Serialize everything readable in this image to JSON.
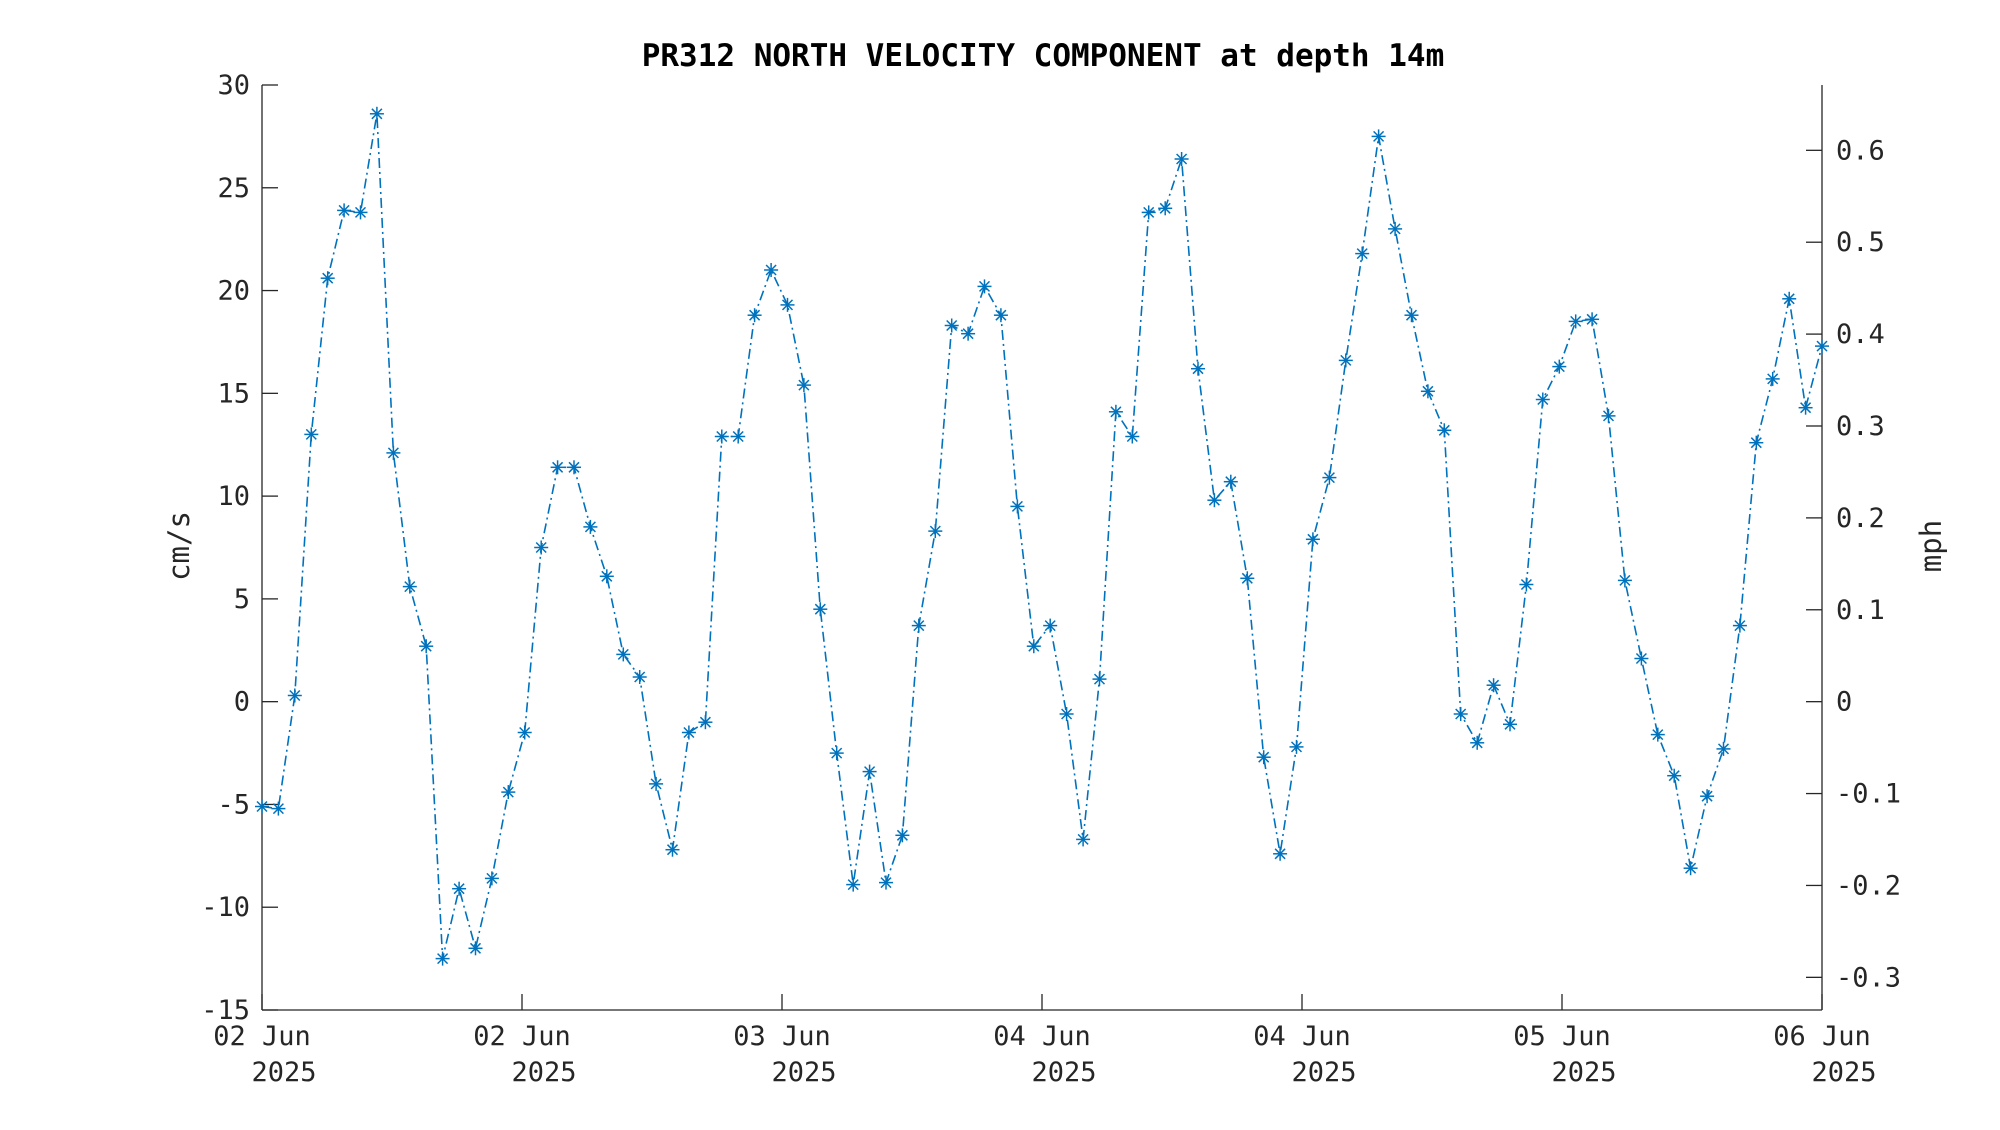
{
  "chart_data": {
    "type": "line",
    "title": "PR312 NORTH VELOCITY COMPONENT at depth 14m",
    "ylabel": "cm/s",
    "ylabel_right": "mph",
    "ylim": [
      -15,
      30
    ],
    "y_ticks": [
      "-15",
      "-10",
      "-5",
      "0",
      "5",
      "10",
      "15",
      "20",
      "25",
      "30"
    ],
    "y_tick_values": [
      -15,
      -10,
      -5,
      0,
      5,
      10,
      15,
      20,
      25,
      30
    ],
    "y_right_ticks": [
      "-0.3",
      "-0.2",
      "-0.1",
      "0",
      "0.1",
      "0.2",
      "0.3",
      "0.4",
      "0.5",
      "0.6"
    ],
    "y_right_tick_values": [
      -0.3,
      -0.2,
      -0.1,
      0,
      0.1,
      0.2,
      0.3,
      0.4,
      0.5,
      0.6
    ],
    "mph_per_cms": 0.0223694,
    "x_ticks": [
      {
        "line1": "02 Jun",
        "line2": "2025"
      },
      {
        "line1": "02 Jun",
        "line2": "2025"
      },
      {
        "line1": "03 Jun",
        "line2": "2025"
      },
      {
        "line1": "04 Jun",
        "line2": "2025"
      },
      {
        "line1": "04 Jun",
        "line2": "2025"
      },
      {
        "line1": "05 Jun",
        "line2": "2025"
      },
      {
        "line1": "06 Jun",
        "line2": "2025"
      }
    ],
    "line_style": "dash-dot",
    "marker": "asterisk",
    "grid": false,
    "legend": "none",
    "series": [
      {
        "color": "#0072BD",
        "values": [
          -5.1,
          -5.2,
          0.3,
          13.0,
          20.6,
          23.9,
          23.8,
          28.6,
          12.1,
          5.6,
          2.7,
          -12.5,
          -9.1,
          -12.0,
          -8.6,
          -4.4,
          -1.5,
          7.5,
          11.4,
          11.4,
          8.5,
          6.1,
          2.3,
          1.2,
          -4.0,
          -7.2,
          -1.5,
          -1.0,
          12.9,
          12.9,
          18.8,
          21.0,
          19.3,
          15.4,
          4.5,
          -2.5,
          -8.9,
          -3.4,
          -8.8,
          -6.5,
          3.7,
          8.3,
          18.3,
          17.9,
          20.2,
          18.8,
          9.5,
          2.7,
          3.7,
          -0.6,
          -6.7,
          1.1,
          14.1,
          12.9,
          23.8,
          24.0,
          26.4,
          16.2,
          9.8,
          10.7,
          6.0,
          -2.7,
          -7.4,
          -2.2,
          7.9,
          10.9,
          16.6,
          21.8,
          27.5,
          23.0,
          18.8,
          15.1,
          13.2,
          -0.6,
          -2.0,
          0.8,
          -1.1,
          5.7,
          14.7,
          16.3,
          18.5,
          18.6,
          13.9,
          5.9,
          2.1,
          -1.6,
          -3.6,
          -8.1,
          -4.6,
          -2.3,
          3.7,
          12.6,
          15.7,
          19.6,
          14.3,
          17.3
        ]
      }
    ]
  }
}
